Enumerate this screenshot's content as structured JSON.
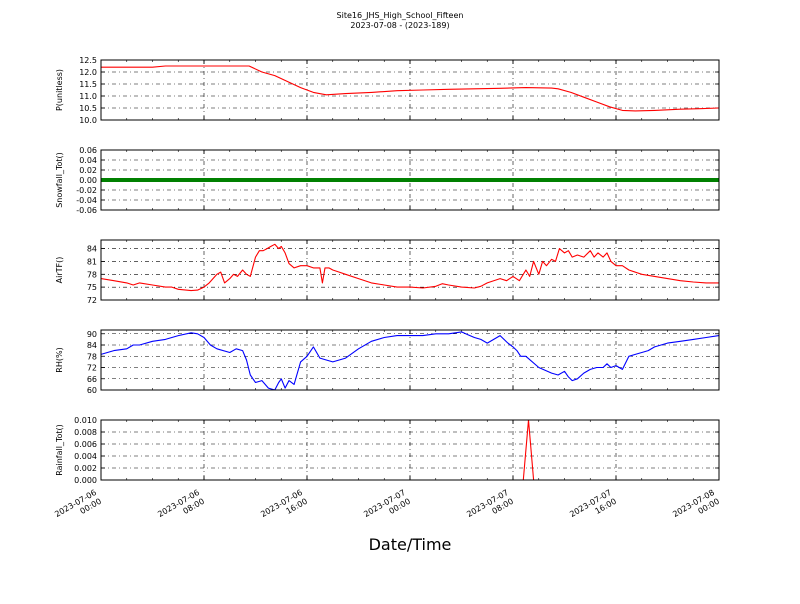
{
  "figure": {
    "title_line1": "Site16_JHS_High_School_Fifteen",
    "title_line2": "2023-07-08 - (2023-189)",
    "xlabel": "Date/Time",
    "x_ticks": [
      "2023-07-06 00:00",
      "2023-07-06 08:00",
      "2023-07-06 16:00",
      "2023-07-07 00:00",
      "2023-07-07 08:00",
      "2023-07-07 16:00",
      "2023-07-08 00:00"
    ],
    "x_tick_hours": [
      0,
      8,
      16,
      24,
      32,
      40,
      48
    ],
    "x_range_hours": [
      0,
      48
    ]
  },
  "chart_data": [
    {
      "type": "line",
      "ylabel": "P(unitless)",
      "ylim": [
        10.0,
        12.5
      ],
      "yticks": [
        "10.0",
        "10.5",
        "11.0",
        "11.5",
        "12.0",
        "12.5"
      ],
      "grid": true,
      "color": "#ff0000",
      "series": [
        {
          "x": [
            0,
            4,
            5,
            8,
            11.5,
            12.5,
            13.5,
            14.5,
            15.5,
            16.5,
            17.5,
            19,
            21,
            23,
            25,
            27,
            29,
            31,
            33,
            35,
            35.5,
            36.5,
            37.5,
            38.5,
            39.5,
            40.5,
            41.5,
            43,
            45,
            46.5,
            48
          ],
          "y": [
            12.2,
            12.2,
            12.25,
            12.25,
            12.25,
            12.0,
            11.85,
            11.6,
            11.35,
            11.15,
            11.05,
            11.1,
            11.15,
            11.22,
            11.25,
            11.28,
            11.3,
            11.32,
            11.35,
            11.33,
            11.3,
            11.15,
            10.95,
            10.75,
            10.55,
            10.4,
            10.38,
            10.4,
            10.45,
            10.47,
            10.5
          ]
        }
      ]
    },
    {
      "type": "scatter",
      "ylabel": "Snowfall_Tot()",
      "ylim": [
        -0.06,
        0.06
      ],
      "yticks": [
        "-0.06",
        "-0.04",
        "-0.02",
        "0.00",
        "0.02",
        "0.04",
        "0.06"
      ],
      "grid": true,
      "color": "#008000",
      "series": [
        {
          "x_range": [
            0,
            48
          ],
          "value": 0.0
        }
      ]
    },
    {
      "type": "line",
      "ylabel": "AirTF()",
      "ylim": [
        72,
        86
      ],
      "yticks": [
        "72",
        "75",
        "78",
        "81",
        "84"
      ],
      "grid": true,
      "color": "#ff0000",
      "series": [
        {
          "x": [
            0,
            1,
            2,
            2.5,
            3,
            4,
            5,
            5.5,
            6,
            7,
            7.5,
            8,
            8.4,
            8.7,
            9,
            9.3,
            9.6,
            10,
            10.3,
            10.6,
            11,
            11.3,
            11.6,
            12,
            12.3,
            12.6,
            12.9,
            13.2,
            13.5,
            13.8,
            14,
            14.3,
            14.6,
            15,
            15.5,
            16,
            16.5,
            17,
            17.2,
            17.4,
            17.7,
            18,
            18.5,
            19,
            20,
            21,
            22,
            23,
            24,
            25,
            26,
            26.5,
            27,
            28,
            29,
            29.5,
            30,
            31,
            31.5,
            32,
            32.5,
            33,
            33.3,
            33.6,
            34,
            34.3,
            34.6,
            35,
            35.3,
            35.6,
            36,
            36.3,
            36.6,
            37,
            37.5,
            38,
            38.3,
            38.6,
            39,
            39.3,
            39.6,
            40,
            40.5,
            41,
            42,
            43,
            44,
            45,
            46,
            47,
            48
          ],
          "y": [
            77,
            76.5,
            76,
            75.5,
            76,
            75.5,
            75,
            75,
            74.5,
            74.2,
            74.3,
            75,
            76,
            77,
            78,
            78.5,
            76,
            77,
            78,
            77.5,
            79,
            78,
            77.5,
            82,
            83.5,
            83.5,
            84,
            84.5,
            85,
            84,
            84.5,
            83,
            80.5,
            79.5,
            80,
            80,
            79.5,
            79.5,
            76,
            79.5,
            79.5,
            79,
            78.5,
            78,
            77,
            76,
            75.5,
            75,
            75,
            74.8,
            75.2,
            75.8,
            75.5,
            75,
            74.8,
            75.2,
            76,
            77,
            76.5,
            77.5,
            76.5,
            79,
            77.5,
            81,
            78,
            81,
            80,
            81.5,
            81,
            84,
            83,
            83.5,
            82,
            82.5,
            82,
            83.5,
            82,
            83,
            82,
            83,
            81,
            80,
            80,
            79,
            78,
            77.5,
            77,
            76.5,
            76.2,
            76,
            76
          ]
        }
      ]
    },
    {
      "type": "line",
      "ylabel": "RH(%)",
      "ylim": [
        60,
        92
      ],
      "yticks": [
        "60",
        "66",
        "72",
        "78",
        "84",
        "90"
      ],
      "grid": true,
      "color": "#0000ff",
      "series": [
        {
          "x": [
            0,
            1,
            2,
            2.5,
            3,
            4,
            5,
            6,
            7,
            7.5,
            8,
            8.5,
            9,
            10,
            10.5,
            11,
            11.3,
            11.6,
            12,
            12.5,
            13,
            13.5,
            13.8,
            14,
            14.3,
            14.6,
            15,
            15.5,
            16,
            16.5,
            17,
            17.5,
            18,
            19,
            20,
            21,
            22,
            23,
            24,
            25,
            26,
            27,
            28,
            28.5,
            29,
            29.5,
            30,
            30.5,
            31,
            31.3,
            31.6,
            32,
            32.3,
            32.6,
            33,
            34,
            35,
            35.5,
            36,
            36.3,
            36.6,
            37,
            37.5,
            38,
            38.5,
            39,
            39.3,
            39.6,
            40,
            40.5,
            41,
            41.5,
            42,
            42.5,
            43,
            44,
            45,
            46,
            47,
            48
          ],
          "y": [
            79,
            81,
            82,
            84,
            84,
            86,
            87,
            89,
            90.5,
            90,
            88,
            84,
            82,
            80,
            82,
            81,
            76,
            68,
            64,
            65,
            61,
            60,
            64,
            66,
            61,
            65,
            63,
            75,
            78,
            83,
            77,
            76,
            75,
            77,
            82,
            86,
            88,
            89,
            89,
            89,
            90,
            90,
            91,
            89.5,
            88,
            87,
            85,
            87,
            89,
            87,
            85,
            83,
            81,
            78,
            78,
            72,
            69,
            68,
            70,
            67,
            65,
            66,
            69,
            71,
            72,
            72,
            74,
            72,
            73,
            71,
            78,
            79,
            80,
            81,
            83,
            85,
            86,
            87,
            88,
            89
          ]
        }
      ]
    },
    {
      "type": "line",
      "ylabel": "Rainfall_Tot()",
      "ylim": [
        0.0,
        0.01
      ],
      "yticks": [
        "0.000",
        "0.002",
        "0.004",
        "0.006",
        "0.008",
        "0.010"
      ],
      "grid": true,
      "color": "#ff0000",
      "series": [
        {
          "x": [
            0,
            32.8,
            33.2,
            33.6,
            48
          ],
          "y": [
            0,
            0,
            0.01,
            0,
            0
          ]
        }
      ]
    }
  ]
}
